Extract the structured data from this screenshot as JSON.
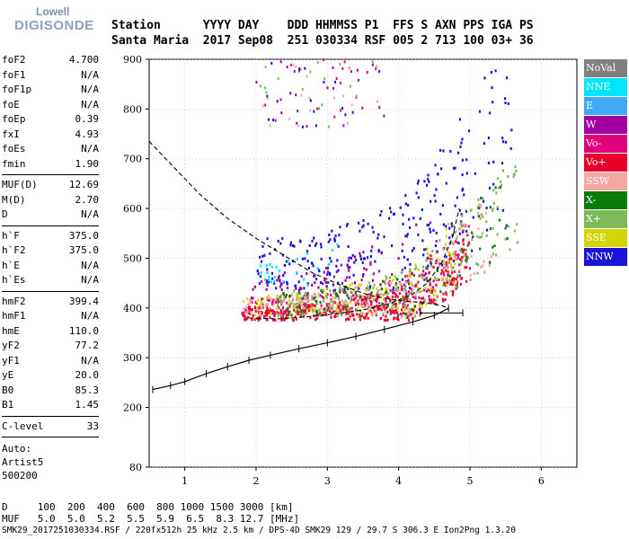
{
  "logo": {
    "brand": "Lowell",
    "product": "DIGISONDE"
  },
  "header": {
    "line1": "Station      YYYY DAY    DDD HHMMSS P1  FFS S AXN PPS IGA PS",
    "line2": "Santa Maria  2017 Sep08  251 030334 RSF 005 2 713 100 03+ 36"
  },
  "sidebar": {
    "group1": [
      {
        "k": "foF2",
        "v": "4.700"
      },
      {
        "k": "foF1",
        "v": "N/A"
      },
      {
        "k": "foF1p",
        "v": "N/A"
      },
      {
        "k": "foE",
        "v": "N/A"
      },
      {
        "k": "foEp",
        "v": "0.39"
      },
      {
        "k": "fxI",
        "v": "4.93"
      },
      {
        "k": "foEs",
        "v": "N/A"
      },
      {
        "k": "fmin",
        "v": "1.90"
      }
    ],
    "group2": [
      {
        "k": "MUF(D)",
        "v": "12.69"
      },
      {
        "k": "M(D)",
        "v": "2.70"
      },
      {
        "k": "D",
        "v": "N/A"
      }
    ],
    "group3": [
      {
        "k": "h`F",
        "v": "375.0"
      },
      {
        "k": "h`F2",
        "v": "375.0"
      },
      {
        "k": "h`E",
        "v": "N/A"
      },
      {
        "k": "h`Es",
        "v": "N/A"
      }
    ],
    "group4": [
      {
        "k": "hmF2",
        "v": "399.4"
      },
      {
        "k": "hmF1",
        "v": "N/A"
      },
      {
        "k": "hmE",
        "v": "110.0"
      },
      {
        "k": "yF2",
        "v": "77.2"
      },
      {
        "k": "yF1",
        "v": "N/A"
      },
      {
        "k": "yE",
        "v": "20.0"
      },
      {
        "k": "B0",
        "v": "85.3"
      },
      {
        "k": "B1",
        "v": "1.45"
      }
    ],
    "group5": [
      {
        "k": "C-level",
        "v": "33"
      }
    ],
    "auto": [
      "Auto:",
      "Artist5",
      "500200"
    ]
  },
  "legend": [
    {
      "label": "NoVal",
      "color": "#808080"
    },
    {
      "label": "NNE",
      "color": "#00e5ff"
    },
    {
      "label": "E",
      "color": "#3fa9f5"
    },
    {
      "label": "W",
      "color": "#a000a0"
    },
    {
      "label": "Vo-",
      "color": "#e0007a"
    },
    {
      "label": "Vo+",
      "color": "#e8002a"
    },
    {
      "label": "SSW",
      "color": "#f4a6a0"
    },
    {
      "label": "X-",
      "color": "#0a7a0a"
    },
    {
      "label": "X+",
      "color": "#7dbb5a"
    },
    {
      "label": "SSE",
      "color": "#d4d400"
    },
    {
      "label": "NNW",
      "color": "#1a14d8"
    }
  ],
  "footer": {
    "line1": "D     100  200  400  600  800 1000 1500 3000 [km]",
    "line2": "MUF   5.0  5.0  5.2  5.5  5.9  6.5  8.3 12.7 [MHz]",
    "line3": "SMK29_2017251030334.RSF / 220fx512h 25 kHz 2.5 km / DPS-4D SMK29 129 / 29.7 S 306.3 E Ion2Png 1.3.20"
  },
  "chart_data": {
    "type": "scatter",
    "xlim": [
      0.5,
      6.5
    ],
    "ylim": [
      80,
      900
    ],
    "x_ticks": [
      "1",
      "2",
      "3",
      "4",
      "5",
      "6"
    ],
    "y_ticks": [
      "80",
      "200",
      "300",
      "400",
      "500",
      "600",
      "700",
      "800",
      "900"
    ],
    "y_ticks_values": [
      80,
      200,
      300,
      400,
      500,
      600,
      700,
      800,
      900
    ],
    "grid": true,
    "legend_placement": "right",
    "profile_solid": [
      [
        0.55,
        236
      ],
      [
        0.8,
        244
      ],
      [
        1.0,
        252
      ],
      [
        1.3,
        268
      ],
      [
        1.6,
        282
      ],
      [
        1.9,
        295
      ],
      [
        2.2,
        305
      ],
      [
        2.6,
        318
      ],
      [
        3.0,
        330
      ],
      [
        3.4,
        343
      ],
      [
        3.8,
        357
      ],
      [
        4.2,
        372
      ],
      [
        4.5,
        385
      ],
      [
        4.7,
        399.4
      ]
    ],
    "profile_dashed": [
      [
        0.5,
        735
      ],
      [
        0.8,
        690
      ],
      [
        1.2,
        630
      ],
      [
        1.6,
        580
      ],
      [
        2.0,
        540
      ],
      [
        2.4,
        505
      ],
      [
        2.8,
        470
      ],
      [
        3.2,
        445
      ],
      [
        3.6,
        425
      ],
      [
        4.0,
        415
      ],
      [
        4.4,
        410
      ],
      [
        4.6,
        405
      ],
      [
        4.7,
        399.4
      ]
    ],
    "trace_dashed": [
      [
        1.9,
        380
      ],
      [
        2.3,
        378
      ],
      [
        2.7,
        382
      ],
      [
        3.1,
        388
      ],
      [
        3.5,
        396
      ],
      [
        3.9,
        410
      ],
      [
        4.2,
        428
      ],
      [
        4.4,
        450
      ],
      [
        4.6,
        490
      ],
      [
        4.75,
        540
      ],
      [
        4.85,
        600
      ]
    ],
    "error_bar": {
      "x": [
        4.3,
        4.9
      ],
      "y": 390
    },
    "cloud": [
      {
        "name": "NNW",
        "color": "#1a14d8",
        "x": [
          2.0,
          5.6
        ],
        "ybase": 400,
        "yspread": [
          50,
          300
        ],
        "n": 280
      },
      {
        "name": "Vo+",
        "color": "#e8002a",
        "x": [
          1.8,
          5.0
        ],
        "ybase": 385,
        "yspread": [
          5,
          80
        ],
        "n": 380
      },
      {
        "name": "Vo-",
        "color": "#e0007a",
        "x": [
          1.8,
          5.0
        ],
        "ybase": 395,
        "yspread": [
          5,
          100
        ],
        "n": 220
      },
      {
        "name": "X+",
        "color": "#7dbb5a",
        "x": [
          2.3,
          5.7
        ],
        "ybase": 390,
        "yspread": [
          5,
          160
        ],
        "n": 240
      },
      {
        "name": "SSE",
        "color": "#d4d400",
        "x": [
          1.8,
          4.8
        ],
        "ybase": 390,
        "yspread": [
          10,
          110
        ],
        "n": 140
      },
      {
        "name": "SSW",
        "color": "#f4a6a0",
        "x": [
          1.8,
          5.3
        ],
        "ybase": 390,
        "yspread": [
          5,
          120
        ],
        "n": 140
      },
      {
        "name": "W",
        "color": "#a000a0",
        "x": [
          1.9,
          4.6
        ],
        "ybase": 420,
        "yspread": [
          10,
          150
        ],
        "n": 90
      },
      {
        "name": "X-",
        "color": "#0a7a0a",
        "x": [
          2.3,
          5.6
        ],
        "ybase": 395,
        "yspread": [
          5,
          140
        ],
        "n": 80
      },
      {
        "name": "NNE",
        "color": "#00e5ff",
        "x": [
          2.0,
          3.2
        ],
        "ybase": 450,
        "yspread": [
          10,
          120
        ],
        "n": 25
      }
    ],
    "upper_cluster": {
      "x": [
        2.0,
        3.8
      ],
      "y": [
        760,
        900
      ],
      "n": 90
    }
  }
}
